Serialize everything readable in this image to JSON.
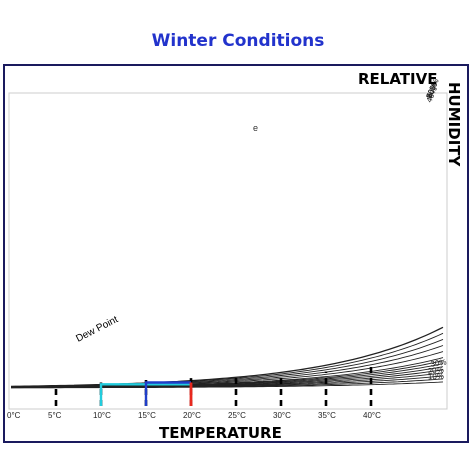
{
  "title": "Winter Conditions",
  "labels": {
    "relative": "RELATIVE",
    "humidity": "HUMIDITY",
    "temperature": "TEMPERATURE",
    "dew_point": "Dew Point",
    "e": "e"
  },
  "chart_data": {
    "type": "line",
    "title": "Winter Conditions",
    "xlabel": "TEMPERATURE",
    "ylabel": "RELATIVE HUMIDITY",
    "xlim": [
      0,
      45
    ],
    "x_ticks": [
      "0°C",
      "5°C",
      "10°C",
      "15°C",
      "20°C",
      "25°C",
      "30°C",
      "35°C",
      "40°C"
    ],
    "x_tick_values": [
      0,
      5,
      10,
      15,
      20,
      25,
      30,
      35,
      40
    ],
    "series": [
      {
        "name": "100%",
        "rh": 1.0
      },
      {
        "name": "90%",
        "rh": 0.9
      },
      {
        "name": "80%",
        "rh": 0.8
      },
      {
        "name": "70%",
        "rh": 0.7
      },
      {
        "name": "60%",
        "rh": 0.6
      },
      {
        "name": "50%",
        "rh": 0.5
      },
      {
        "name": "40%",
        "rh": 0.4
      },
      {
        "name": "30%",
        "rh": 0.3
      },
      {
        "name": "20%",
        "rh": 0.2
      },
      {
        "name": "10%",
        "rh": 0.1
      }
    ],
    "unlabeled_curves_rh": [
      0.15,
      0.25,
      0.35,
      0.45
    ],
    "dashed_markers": [
      {
        "x": 5,
        "to_rh": 1.65
      },
      {
        "x": 10,
        "to_rh": 1.6
      },
      {
        "x": 15,
        "to_rh": 1.6
      },
      {
        "x": 20,
        "to_rh": 1.35
      },
      {
        "x": 25,
        "to_rh": 0.94
      },
      {
        "x": 30,
        "to_rh": 0.86
      },
      {
        "x": 35,
        "to_rh": 0.72
      },
      {
        "x": 40,
        "to_rh": 0.66
      }
    ],
    "annotations": [
      {
        "name": "cyan",
        "color": "#22ccdd",
        "x": 20,
        "rh": 0.5,
        "dew_point_x": 10
      },
      {
        "name": "blue",
        "color": "#1f3ec9",
        "x": 20,
        "rh": 0.75,
        "dew_point_x": 15
      },
      {
        "name": "red",
        "color": "#e8281e",
        "x": 20
      }
    ],
    "grid": false
  }
}
